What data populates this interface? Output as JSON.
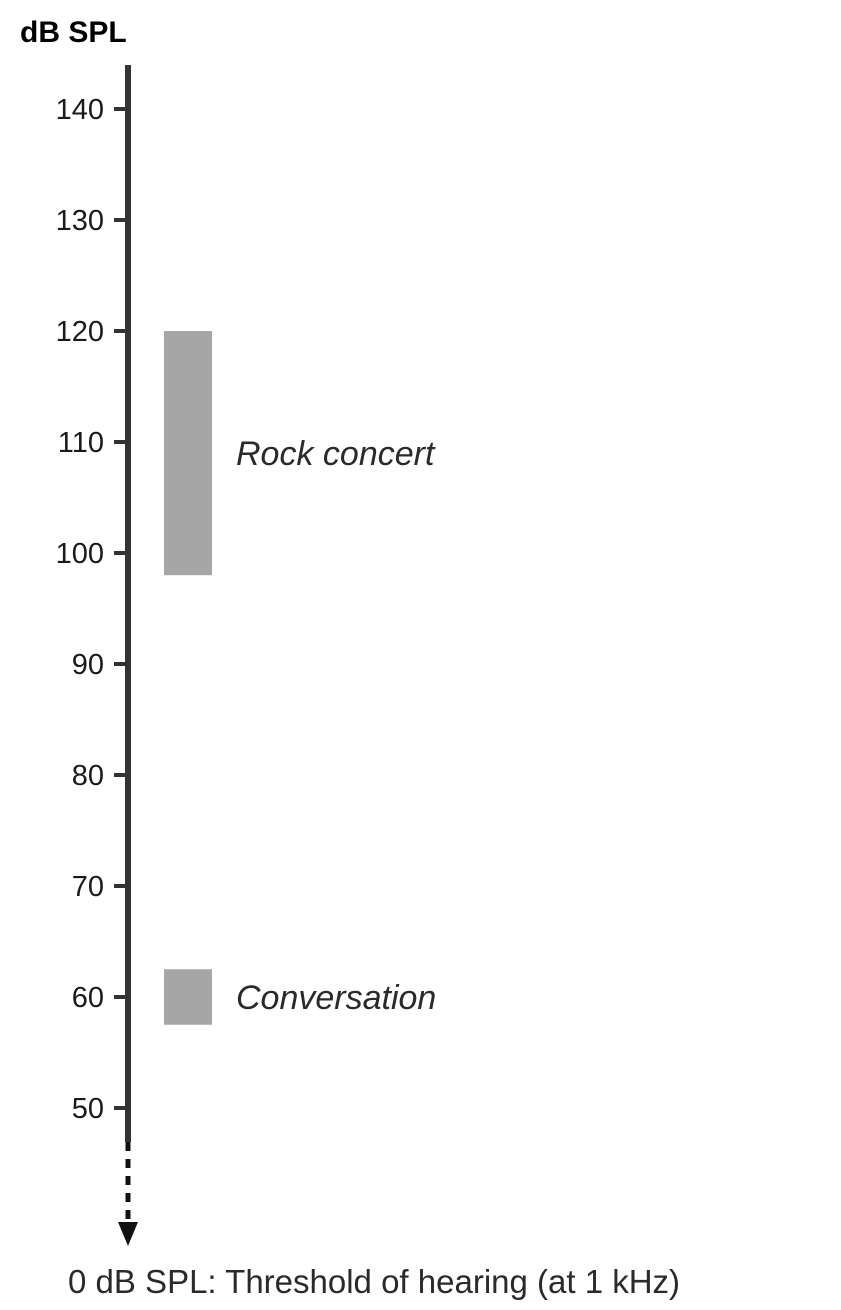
{
  "chart_data": {
    "type": "bar",
    "ylabel": "dB SPL",
    "ylim": [
      45,
      140
    ],
    "yticks": [
      140,
      130,
      120,
      110,
      100,
      90,
      80,
      70,
      60,
      50
    ],
    "grid": false,
    "bands": [
      {
        "label": "Rock concert",
        "low": 98,
        "high": 120
      },
      {
        "label": "Conversation",
        "low": 57.5,
        "high": 62.5
      }
    ],
    "annotation": "0 dB SPL: Threshold of hearing (at 1 kHz)",
    "colors": {
      "axis": "#333333",
      "band": "#a6a6a6",
      "text": "#1a1a1a"
    }
  }
}
